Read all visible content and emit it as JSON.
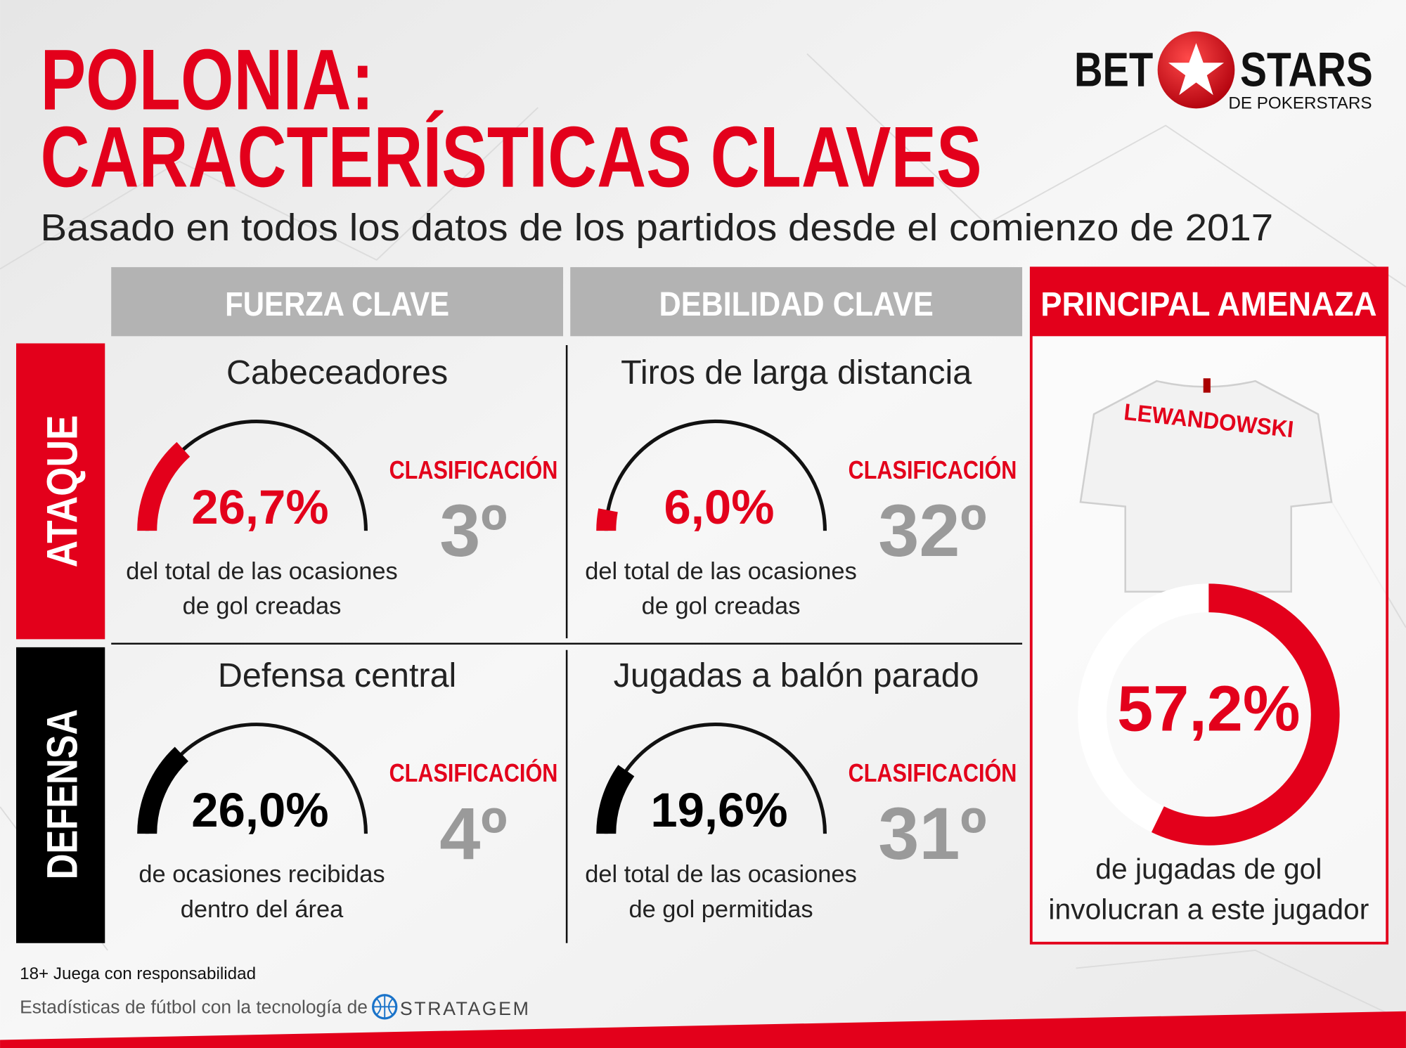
{
  "header": {
    "title_line1": "POLONIA:",
    "title_line2": "CARACTERÍSTICAS CLAVES",
    "subtitle": "Basado en todos los datos de los partidos desde el comienzo de 2017",
    "logo": {
      "left": "BET",
      "right": "STARS",
      "tagline": "DE POKERSTARS"
    }
  },
  "columns": [
    "FUERZA CLAVE",
    "DEBILIDAD CLAVE"
  ],
  "rows": [
    "ATAQUE",
    "DEFENSA"
  ],
  "cells": [
    {
      "title": "Cabeceadores",
      "value": {
        "value": 26.7,
        "label": "26,7%"
      },
      "description": [
        "del total de las ocasiones",
        "de gol creadas"
      ],
      "rank_label": "CLASIFICACIÓN",
      "rank": "3º"
    },
    {
      "title": "Tiros de larga distancia",
      "value": {
        "value": 6.0,
        "label": "6,0%"
      },
      "description": [
        "del total de las ocasiones",
        "de gol creadas"
      ],
      "rank_label": "CLASIFICACIÓN",
      "rank": "32º"
    },
    {
      "title": "Defensa central",
      "value": {
        "value": 26.0,
        "label": "26,0%"
      },
      "description": [
        "de ocasiones recibidas",
        "dentro del área"
      ],
      "rank_label": "CLASIFICACIÓN",
      "rank": "4º"
    },
    {
      "title": "Jugadas a balón parado",
      "value": {
        "value": 19.6,
        "label": "19,6%"
      },
      "description": [
        "del total de las ocasiones",
        "de gol permitidas"
      ],
      "rank_label": "CLASIFICACIÓN",
      "rank": "31º"
    }
  ],
  "threat": {
    "header": "PRINCIPAL AMENAZA",
    "player": "LEWANDOWSKI",
    "value": {
      "value": 57.2,
      "label": "57,2%"
    },
    "description": [
      "de jugadas de gol",
      "involucran a este jugador"
    ]
  },
  "footer": {
    "responsible": "18+ Juega con responsabilidad",
    "powered": "Estadísticas de fútbol con la tecnología de",
    "partner": "STRATAGEM"
  }
}
